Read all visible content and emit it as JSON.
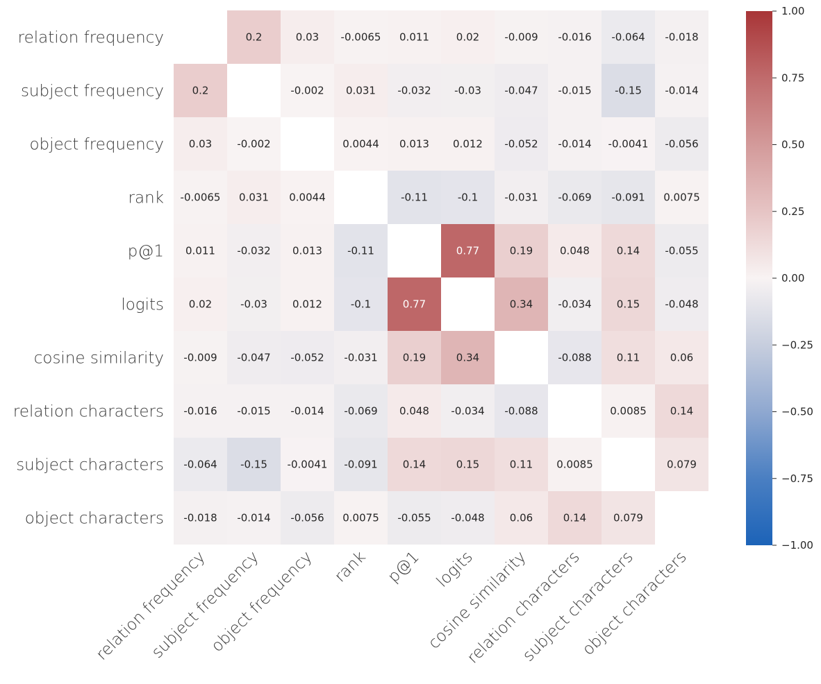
{
  "chart_data": {
    "type": "heatmap",
    "title": "",
    "xlabel": "",
    "ylabel": "",
    "rows": [
      "relation frequency",
      "subject frequency",
      "object frequency",
      "rank",
      "p@1",
      "logits",
      "cosine similarity",
      "relation characters",
      "subject characters",
      "object characters"
    ],
    "columns": [
      "relation frequency",
      "subject frequency",
      "object frequency",
      "rank",
      "p@1",
      "logits",
      "cosine similarity",
      "relation characters",
      "subject characters",
      "object characters"
    ],
    "values": [
      [
        null,
        0.2,
        0.03,
        -0.0065,
        0.011,
        0.02,
        -0.009,
        -0.016,
        -0.064,
        -0.018
      ],
      [
        0.2,
        null,
        -0.002,
        0.031,
        -0.032,
        -0.03,
        -0.047,
        -0.015,
        -0.15,
        -0.014
      ],
      [
        0.03,
        -0.002,
        null,
        0.0044,
        0.013,
        0.012,
        -0.052,
        -0.014,
        -0.0041,
        -0.056
      ],
      [
        -0.0065,
        0.031,
        0.0044,
        null,
        -0.11,
        -0.1,
        -0.031,
        -0.069,
        -0.091,
        0.0075
      ],
      [
        0.011,
        -0.032,
        0.013,
        -0.11,
        null,
        0.77,
        0.19,
        0.048,
        0.14,
        -0.055
      ],
      [
        0.02,
        -0.03,
        0.012,
        -0.1,
        0.77,
        null,
        0.34,
        -0.034,
        0.15,
        -0.048
      ],
      [
        -0.009,
        -0.047,
        -0.052,
        -0.031,
        0.19,
        0.34,
        null,
        -0.088,
        0.11,
        0.06
      ],
      [
        -0.016,
        -0.015,
        -0.014,
        -0.069,
        0.048,
        -0.034,
        -0.088,
        null,
        0.0085,
        0.14
      ],
      [
        -0.064,
        -0.15,
        -0.0041,
        -0.091,
        0.14,
        0.15,
        0.11,
        0.0085,
        null,
        0.079
      ],
      [
        -0.018,
        -0.014,
        -0.056,
        0.0075,
        -0.055,
        -0.048,
        0.06,
        0.14,
        0.079,
        null
      ]
    ],
    "colorbar": {
      "min": -1.0,
      "max": 1.0,
      "ticks": [
        1.0,
        0.75,
        0.5,
        0.25,
        0.0,
        -0.25,
        -0.5,
        -0.75,
        -1.0
      ],
      "tick_labels": [
        "1.00",
        "0.75",
        "0.50",
        "0.25",
        "0.00",
        "−0.25",
        "−0.50",
        "−0.75",
        "−1.00"
      ],
      "colormap": "vlag",
      "color_low": "#1f64b8",
      "color_mid": "#f8f3f3",
      "color_high": "#a83537"
    },
    "grid": false,
    "legend": "colorbar-right"
  }
}
